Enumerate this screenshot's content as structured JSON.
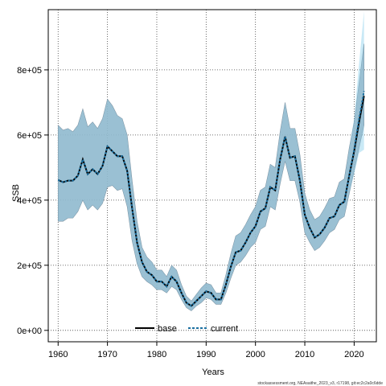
{
  "chart_data": {
    "type": "line",
    "xlabel": "Years",
    "ylabel": "SSB",
    "xlim": [
      1958,
      2024.5
    ],
    "ylim": [
      -35000,
      985000
    ],
    "grid": true,
    "x_ticks": [
      1960,
      1970,
      1980,
      1990,
      2000,
      2010,
      2020
    ],
    "x_tick_labels": [
      "1960",
      "1970",
      "1980",
      "1990",
      "2000",
      "2010",
      "2020"
    ],
    "y_ticks": [
      0,
      200000,
      400000,
      600000,
      800000
    ],
    "y_tick_labels": [
      "0e+00",
      "2e+05",
      "4e+05",
      "6e+05",
      "8e+05"
    ],
    "legend": {
      "position": "bottom",
      "entries": [
        {
          "label": "base",
          "color": "#000000",
          "style": "solid"
        },
        {
          "label": "current",
          "color": "#1a6fa0",
          "style": "dotted"
        }
      ]
    },
    "series": [
      {
        "name": "base",
        "color": "#000000",
        "x": [
          1960,
          1961,
          1962,
          1963,
          1964,
          1965,
          1966,
          1967,
          1968,
          1969,
          1970,
          1971,
          1972,
          1973,
          1974,
          1975,
          1976,
          1977,
          1978,
          1979,
          1980,
          1981,
          1982,
          1983,
          1984,
          1985,
          1986,
          1987,
          1988,
          1989,
          1990,
          1991,
          1992,
          1993,
          1994,
          1995,
          1996,
          1997,
          1998,
          1999,
          2000,
          2001,
          2002,
          2003,
          2004,
          2005,
          2006,
          2007,
          2008,
          2009,
          2010,
          2011,
          2012,
          2013,
          2014,
          2015,
          2016,
          2017,
          2018,
          2019,
          2020,
          2021,
          2022
        ],
        "y": [
          462000,
          455000,
          460000,
          460000,
          475000,
          525000,
          480000,
          495000,
          480000,
          505000,
          565000,
          550000,
          535000,
          535000,
          490000,
          375000,
          270000,
          210000,
          180000,
          170000,
          150000,
          150000,
          135000,
          165000,
          150000,
          115000,
          85000,
          75000,
          90000,
          105000,
          120000,
          115000,
          95000,
          95000,
          140000,
          195000,
          240000,
          245000,
          270000,
          300000,
          320000,
          365000,
          375000,
          440000,
          430000,
          525000,
          595000,
          530000,
          535000,
          460000,
          355000,
          315000,
          285000,
          295000,
          315000,
          345000,
          350000,
          385000,
          395000,
          475000,
          550000,
          640000,
          720000
        ],
        "lower": [
          335000,
          335000,
          345000,
          345000,
          365000,
          400000,
          370000,
          385000,
          370000,
          390000,
          440000,
          445000,
          430000,
          435000,
          380000,
          275000,
          205000,
          165000,
          150000,
          140000,
          125000,
          125000,
          115000,
          135000,
          125000,
          95000,
          70000,
          60000,
          75000,
          85000,
          100000,
          95000,
          80000,
          80000,
          115000,
          160000,
          200000,
          210000,
          230000,
          255000,
          270000,
          310000,
          320000,
          380000,
          370000,
          450000,
          520000,
          460000,
          460000,
          395000,
          300000,
          270000,
          245000,
          255000,
          275000,
          300000,
          310000,
          340000,
          350000,
          420000,
          490000,
          560000,
          630000
        ],
        "upper": [
          630000,
          615000,
          620000,
          610000,
          630000,
          680000,
          625000,
          640000,
          620000,
          650000,
          710000,
          690000,
          660000,
          650000,
          600000,
          460000,
          335000,
          255000,
          225000,
          210000,
          185000,
          185000,
          165000,
          200000,
          185000,
          140000,
          105000,
          90000,
          110000,
          130000,
          145000,
          140000,
          115000,
          115000,
          170000,
          235000,
          290000,
          300000,
          325000,
          355000,
          380000,
          430000,
          440000,
          510000,
          500000,
          610000,
          700000,
          620000,
          620000,
          540000,
          420000,
          370000,
          340000,
          350000,
          375000,
          405000,
          410000,
          455000,
          465000,
          560000,
          640000,
          760000,
          880000
        ]
      },
      {
        "name": "current",
        "color": "#1a6fa0",
        "x": [
          1960,
          1961,
          1962,
          1963,
          1964,
          1965,
          1966,
          1967,
          1968,
          1969,
          1970,
          1971,
          1972,
          1973,
          1974,
          1975,
          1976,
          1977,
          1978,
          1979,
          1980,
          1981,
          1982,
          1983,
          1984,
          1985,
          1986,
          1987,
          1988,
          1989,
          1990,
          1991,
          1992,
          1993,
          1994,
          1995,
          1996,
          1997,
          1998,
          1999,
          2000,
          2001,
          2002,
          2003,
          2004,
          2005,
          2006,
          2007,
          2008,
          2009,
          2010,
          2011,
          2012,
          2013,
          2014,
          2015,
          2016,
          2017,
          2018,
          2019,
          2020,
          2021,
          2022
        ],
        "y": [
          462000,
          455000,
          460000,
          460000,
          475000,
          525000,
          480000,
          495000,
          480000,
          505000,
          565000,
          550000,
          535000,
          535000,
          490000,
          375000,
          270000,
          210000,
          180000,
          170000,
          150000,
          150000,
          135000,
          165000,
          150000,
          115000,
          85000,
          75000,
          90000,
          105000,
          120000,
          115000,
          95000,
          95000,
          140000,
          195000,
          240000,
          245000,
          270000,
          300000,
          320000,
          365000,
          375000,
          440000,
          430000,
          525000,
          595000,
          530000,
          535000,
          460000,
          355000,
          315000,
          285000,
          295000,
          315000,
          345000,
          350000,
          385000,
          395000,
          475000,
          555000,
          650000,
          735000
        ],
        "lower": [
          335000,
          335000,
          345000,
          345000,
          365000,
          400000,
          370000,
          385000,
          370000,
          390000,
          440000,
          445000,
          430000,
          435000,
          380000,
          275000,
          205000,
          165000,
          150000,
          140000,
          125000,
          125000,
          115000,
          135000,
          125000,
          95000,
          70000,
          60000,
          75000,
          85000,
          100000,
          95000,
          80000,
          80000,
          115000,
          160000,
          200000,
          210000,
          230000,
          255000,
          270000,
          310000,
          320000,
          380000,
          370000,
          450000,
          520000,
          460000,
          460000,
          395000,
          300000,
          270000,
          245000,
          255000,
          275000,
          300000,
          310000,
          340000,
          350000,
          420000,
          480000,
          545000,
          555000
        ],
        "upper": [
          630000,
          615000,
          620000,
          610000,
          630000,
          680000,
          625000,
          640000,
          620000,
          650000,
          710000,
          690000,
          660000,
          650000,
          600000,
          460000,
          335000,
          255000,
          225000,
          210000,
          185000,
          185000,
          165000,
          200000,
          185000,
          140000,
          105000,
          90000,
          110000,
          130000,
          145000,
          140000,
          115000,
          115000,
          170000,
          235000,
          290000,
          300000,
          325000,
          355000,
          380000,
          430000,
          440000,
          510000,
          500000,
          610000,
          700000,
          620000,
          620000,
          540000,
          420000,
          370000,
          340000,
          350000,
          375000,
          405000,
          410000,
          455000,
          465000,
          560000,
          650000,
          820000,
          980000
        ]
      }
    ],
    "footer_text": "stockassessment.org, NEAsaithe_2023_v3, r17198, git:ec2c2a0c6dde"
  },
  "colors": {
    "base_band": "#9aa8b4",
    "current_band": "#87ceeb",
    "frame": "#000000",
    "grid": "#444444"
  }
}
